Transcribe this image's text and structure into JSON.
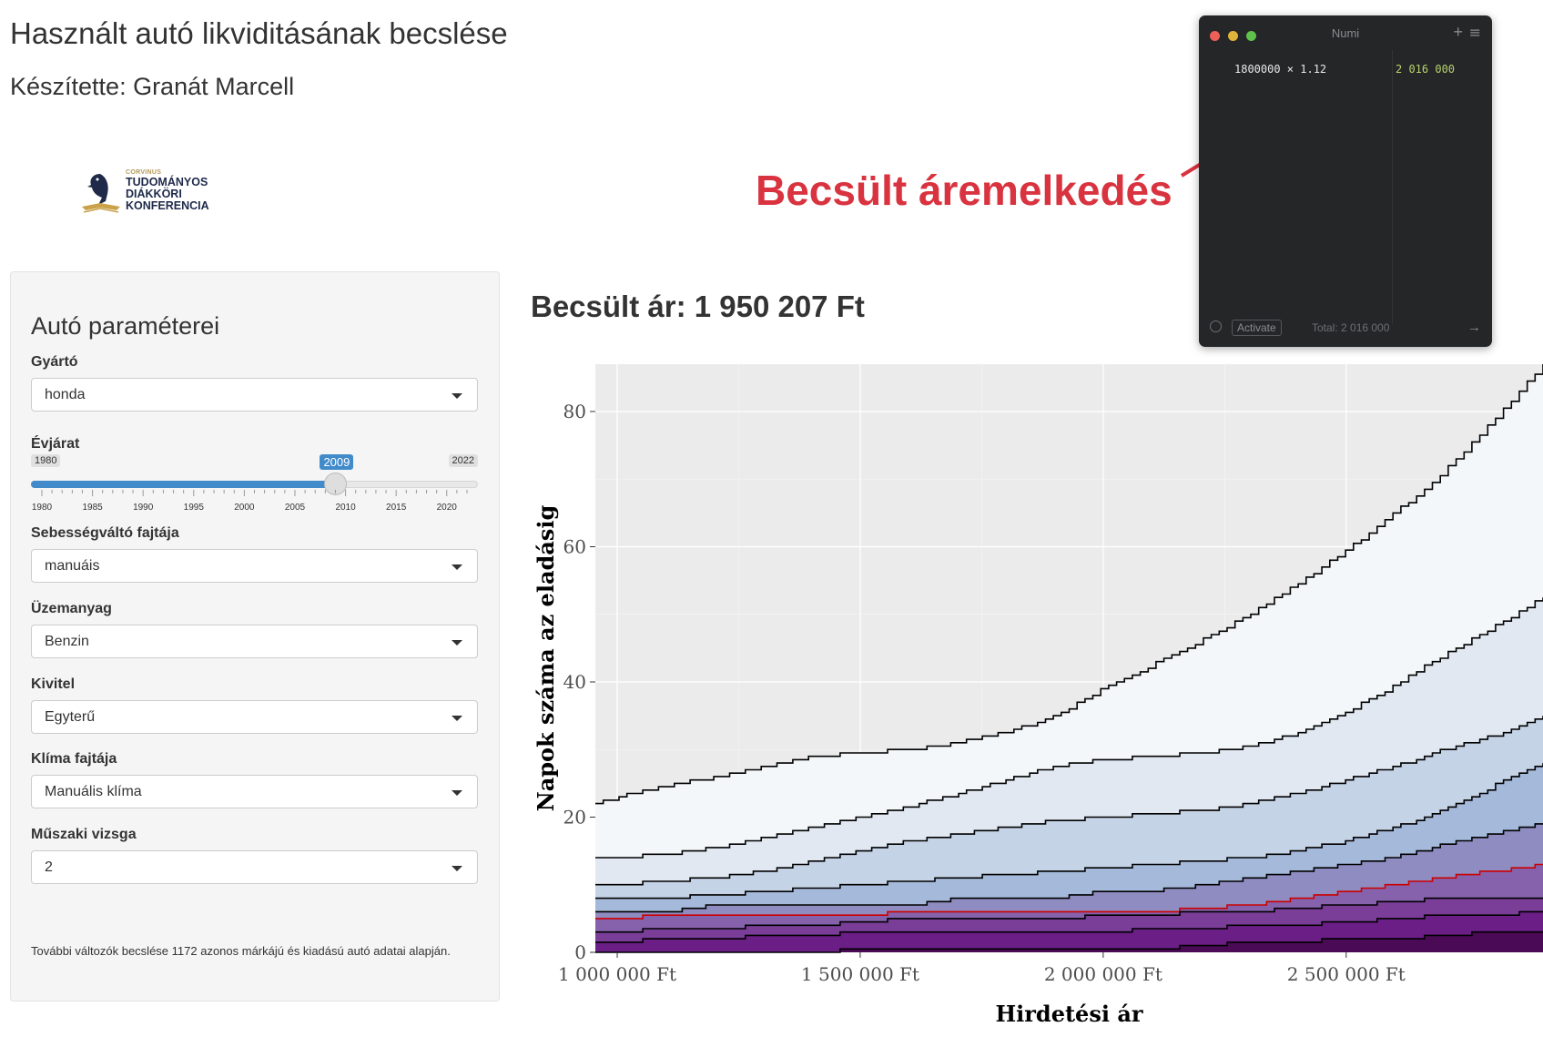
{
  "header": {
    "title": "Használt autó likviditásának becslése",
    "author": "Készítette: Granát Marcell"
  },
  "logo": {
    "line1": "CORVINUS",
    "line2": "TUDOMÁNYOS",
    "line3": "DIÁKKÖRI",
    "line4": "KONFERENCIA"
  },
  "sidebar": {
    "title": "Autó paraméterei",
    "fields": [
      {
        "label": "Gyártó",
        "value": "honda"
      },
      {
        "label": "Sebességváltó fajtája",
        "value": "manuáis"
      },
      {
        "label": "Üzemanyag",
        "value": "Benzin"
      },
      {
        "label": "Kivitel",
        "value": "Egyterű"
      },
      {
        "label": "Klíma fajtája",
        "value": "Manuális klíma"
      },
      {
        "label": "Műszaki vizsga",
        "value": "2"
      }
    ],
    "slider": {
      "label": "Évjárat",
      "min": "1980",
      "max": "2022",
      "value": "2009",
      "min_num": 1980,
      "max_num": 2022,
      "value_num": 2009,
      "ticks": [
        "1980",
        "1985",
        "1990",
        "1995",
        "2000",
        "2005",
        "2010",
        "2015",
        "2020"
      ]
    },
    "note": "További változók becslése 1172 azonos márkájú és kiadású autó adatai alapján."
  },
  "price": "Becsült ár: 1 950 207 Ft",
  "numi": {
    "title": "Numi",
    "expression": "1800000 × 1.12",
    "result": "2 016 000",
    "activate": "Activate",
    "total": "Total: 2 016 000"
  },
  "annotation": "Becsült áremelkedés",
  "colors": {
    "accent": "#428bca",
    "annotation": "#d93340",
    "highlight_line": "#cc0000",
    "numi_result": "#b7d26b"
  },
  "chart_data": {
    "type": "area",
    "xlabel": "Hirdetési ár",
    "ylabel": "Napok száma az eladásig",
    "xlim": [
      955000,
      2905000
    ],
    "ylim": [
      0,
      87
    ],
    "xticks": [
      1000000,
      1500000,
      2000000,
      2500000
    ],
    "xtick_labels": [
      "1 000 000 Ft",
      "1 500 000 Ft",
      "2 000 000 Ft",
      "2 500 000 Ft"
    ],
    "yticks": [
      0,
      20,
      40,
      60,
      80
    ],
    "ytick_labels": [
      "0",
      "20",
      "40",
      "60",
      "80"
    ],
    "x": [
      955000,
      1000000,
      1100000,
      1200000,
      1300000,
      1400000,
      1500000,
      1600000,
      1700000,
      1800000,
      1900000,
      2000000,
      2100000,
      2200000,
      2300000,
      2400000,
      2500000,
      2600000,
      2700000,
      2800000,
      2905000
    ],
    "fill_colors": [
      "#f4f7fa",
      "#e1e8f2",
      "#c5d3e6",
      "#a5b9da",
      "#8e8cc0",
      "#8662ad",
      "#7a3e98",
      "#6a1e86",
      "#4b0a55"
    ],
    "highlight_series": 5,
    "series": [
      {
        "values": [
          22,
          23,
          24.5,
          26,
          27.5,
          29,
          29.5,
          30,
          31,
          32.5,
          35,
          39,
          42.5,
          46,
          50,
          54.5,
          59.5,
          65,
          71,
          78.5,
          87
        ]
      },
      {
        "values": [
          14,
          14,
          14.5,
          15.5,
          17,
          18.5,
          20,
          21.5,
          23.5,
          25.5,
          27.5,
          28.5,
          29,
          29.5,
          30.5,
          32.5,
          35.5,
          39.5,
          44,
          48,
          52.5
        ]
      },
      {
        "values": [
          10,
          10,
          10.5,
          11,
          12,
          13.5,
          15,
          16.5,
          17.5,
          18.5,
          19.5,
          20,
          20.5,
          21,
          22,
          23.5,
          25.5,
          27.5,
          30,
          32,
          35
        ]
      },
      {
        "values": [
          8,
          8,
          8,
          8.5,
          9,
          9.5,
          10,
          10.5,
          11,
          11.5,
          12,
          12.5,
          13,
          13.5,
          14,
          15,
          16.5,
          18.5,
          21,
          24.5,
          28
        ]
      },
      {
        "values": [
          6,
          6,
          6,
          7,
          7,
          7,
          7,
          7,
          8,
          8,
          8,
          9,
          9,
          10,
          11,
          12,
          13,
          14,
          16,
          17.5,
          19
        ]
      },
      {
        "values": [
          5,
          5,
          5.5,
          5.5,
          5.5,
          5.5,
          5.5,
          6,
          6,
          6,
          6,
          6,
          6,
          6.5,
          7,
          8,
          9,
          10,
          11,
          12,
          13
        ]
      },
      {
        "values": [
          3,
          3,
          3.5,
          3.5,
          4,
          4,
          4.5,
          5,
          5,
          5,
          5,
          5.5,
          5.5,
          6,
          6,
          6.5,
          7,
          7.5,
          8,
          8,
          8
        ]
      },
      {
        "values": [
          1.5,
          1.5,
          2,
          2,
          2.5,
          2.5,
          3,
          3,
          3,
          3,
          3,
          3,
          3.5,
          3.5,
          4,
          4,
          4.5,
          5,
          5.5,
          5.5,
          6
        ]
      },
      {
        "values": [
          0,
          0,
          0,
          0,
          0,
          0,
          0.5,
          0.5,
          0.5,
          0.5,
          0.5,
          0.5,
          0.5,
          1,
          1.5,
          1.5,
          2,
          2,
          2.5,
          3,
          3
        ]
      }
    ]
  }
}
